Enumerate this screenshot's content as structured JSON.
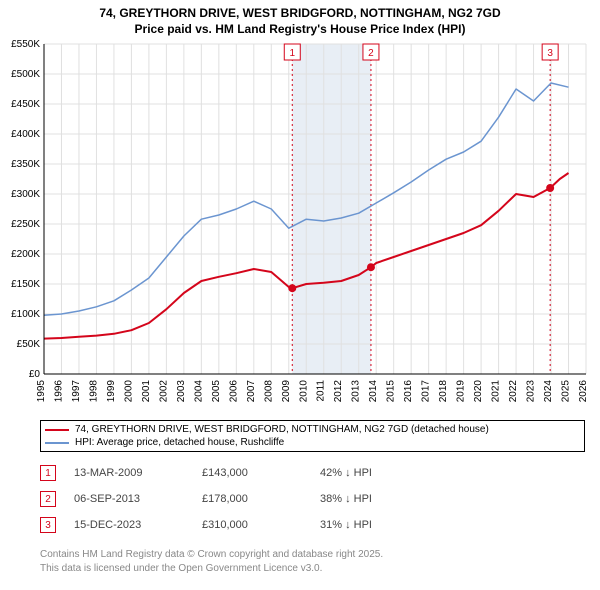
{
  "title_line1": "74, GREYTHORN DRIVE, WEST BRIDGFORD, NOTTINGHAM, NG2 7GD",
  "title_line2": "Price paid vs. HM Land Registry's House Price Index (HPI)",
  "chart": {
    "background_color": "#ffffff",
    "grid_color": "#e0e0e0",
    "shade_band_color": "#e8eef5",
    "axis_color": "#000000",
    "y": {
      "min": 0,
      "max": 550000,
      "step": 50000,
      "labels": [
        "£0",
        "£50K",
        "£100K",
        "£150K",
        "£200K",
        "£250K",
        "£300K",
        "£350K",
        "£400K",
        "£450K",
        "£500K",
        "£550K"
      ]
    },
    "x": {
      "min": 1995,
      "max": 2026,
      "step": 1,
      "labels": [
        "1995",
        "1996",
        "1997",
        "1998",
        "1999",
        "2000",
        "2001",
        "2002",
        "2003",
        "2004",
        "2005",
        "2006",
        "2007",
        "2008",
        "2009",
        "2010",
        "2011",
        "2012",
        "2013",
        "2014",
        "2015",
        "2016",
        "2017",
        "2018",
        "2019",
        "2020",
        "2021",
        "2022",
        "2023",
        "2024",
        "2025",
        "2026"
      ]
    },
    "shade_band_x": [
      2009.2,
      2013.7
    ],
    "series": [
      {
        "name": "price_paid",
        "color": "#d4051b",
        "line_width": 2,
        "data": [
          [
            1995,
            59000
          ],
          [
            1996,
            60000
          ],
          [
            1997,
            62000
          ],
          [
            1998,
            64000
          ],
          [
            1999,
            67000
          ],
          [
            2000,
            73000
          ],
          [
            2001,
            85000
          ],
          [
            2002,
            108000
          ],
          [
            2003,
            135000
          ],
          [
            2004,
            155000
          ],
          [
            2005,
            162000
          ],
          [
            2006,
            168000
          ],
          [
            2007,
            175000
          ],
          [
            2008,
            170000
          ],
          [
            2009,
            145000
          ],
          [
            2009.2,
            143000
          ],
          [
            2010,
            150000
          ],
          [
            2011,
            152000
          ],
          [
            2012,
            155000
          ],
          [
            2013,
            165000
          ],
          [
            2013.7,
            178000
          ],
          [
            2014,
            185000
          ],
          [
            2015,
            195000
          ],
          [
            2016,
            205000
          ],
          [
            2017,
            215000
          ],
          [
            2018,
            225000
          ],
          [
            2019,
            235000
          ],
          [
            2020,
            248000
          ],
          [
            2021,
            272000
          ],
          [
            2022,
            300000
          ],
          [
            2023,
            295000
          ],
          [
            2023.95,
            310000
          ],
          [
            2024.5,
            325000
          ],
          [
            2025,
            335000
          ]
        ],
        "marker_radius": 4,
        "marker_color": "#d4051b"
      },
      {
        "name": "hpi",
        "color": "#6b95d0",
        "line_width": 1.5,
        "data": [
          [
            1995,
            98000
          ],
          [
            1996,
            100000
          ],
          [
            1997,
            105000
          ],
          [
            1998,
            112000
          ],
          [
            1999,
            122000
          ],
          [
            2000,
            140000
          ],
          [
            2001,
            160000
          ],
          [
            2002,
            195000
          ],
          [
            2003,
            230000
          ],
          [
            2004,
            258000
          ],
          [
            2005,
            265000
          ],
          [
            2006,
            275000
          ],
          [
            2007,
            288000
          ],
          [
            2008,
            275000
          ],
          [
            2009,
            243000
          ],
          [
            2010,
            258000
          ],
          [
            2011,
            255000
          ],
          [
            2012,
            260000
          ],
          [
            2013,
            268000
          ],
          [
            2014,
            285000
          ],
          [
            2015,
            302000
          ],
          [
            2016,
            320000
          ],
          [
            2017,
            340000
          ],
          [
            2018,
            358000
          ],
          [
            2019,
            370000
          ],
          [
            2020,
            388000
          ],
          [
            2021,
            428000
          ],
          [
            2022,
            475000
          ],
          [
            2023,
            455000
          ],
          [
            2024,
            485000
          ],
          [
            2025,
            478000
          ]
        ]
      }
    ],
    "markers": [
      {
        "n": "1",
        "x": 2009.2,
        "y": 143000,
        "label_y_top": true,
        "color": "#d4051b"
      },
      {
        "n": "2",
        "x": 2013.7,
        "y": 178000,
        "label_y_top": true,
        "color": "#d4051b"
      },
      {
        "n": "3",
        "x": 2023.95,
        "y": 310000,
        "label_y_top": true,
        "color": "#d4051b"
      }
    ]
  },
  "legend": [
    {
      "color": "#d4051b",
      "text": "74, GREYTHORN DRIVE, WEST BRIDGFORD, NOTTINGHAM, NG2 7GD (detached house)"
    },
    {
      "color": "#6b95d0",
      "text": "HPI: Average price, detached house, Rushcliffe"
    }
  ],
  "sales": [
    {
      "n": "1",
      "date": "13-MAR-2009",
      "price": "£143,000",
      "pct": "42% ↓ HPI",
      "badge_color": "#d4051b"
    },
    {
      "n": "2",
      "date": "06-SEP-2013",
      "price": "£178,000",
      "pct": "38% ↓ HPI",
      "badge_color": "#d4051b"
    },
    {
      "n": "3",
      "date": "15-DEC-2023",
      "price": "£310,000",
      "pct": "31% ↓ HPI",
      "badge_color": "#d4051b"
    }
  ],
  "footnote_lines": [
    "Contains HM Land Registry data © Crown copyright and database right 2025.",
    "This data is licensed under the Open Government Licence v3.0."
  ]
}
